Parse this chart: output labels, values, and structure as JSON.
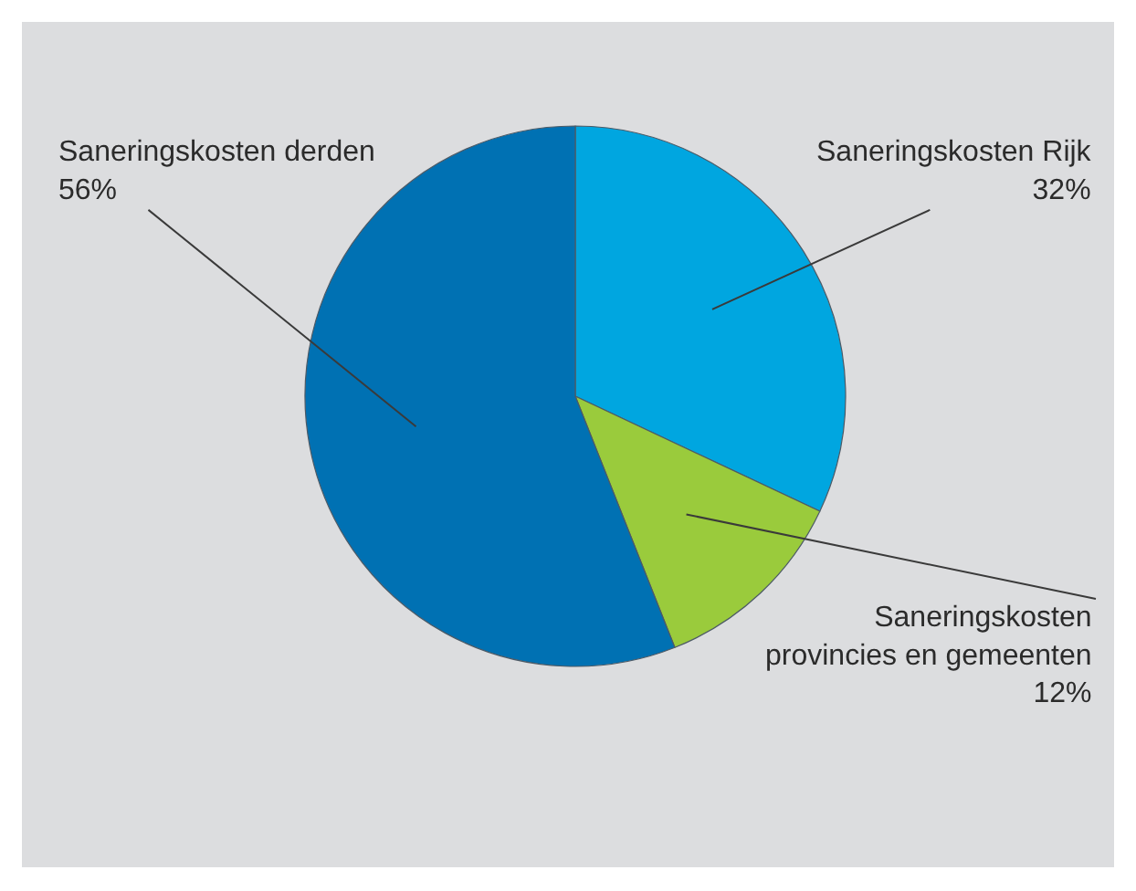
{
  "chart_data": {
    "type": "pie",
    "categories": [
      "Saneringskosten Rijk",
      "Saneringskosten provincies en gemeenten",
      "Saneringskosten derden"
    ],
    "values": [
      32,
      12,
      56
    ],
    "value_labels": [
      "32%",
      "12%",
      "56%"
    ],
    "colors": [
      "#00a6e0",
      "#9acb3c",
      "#0071b3"
    ],
    "legend": false
  }
}
